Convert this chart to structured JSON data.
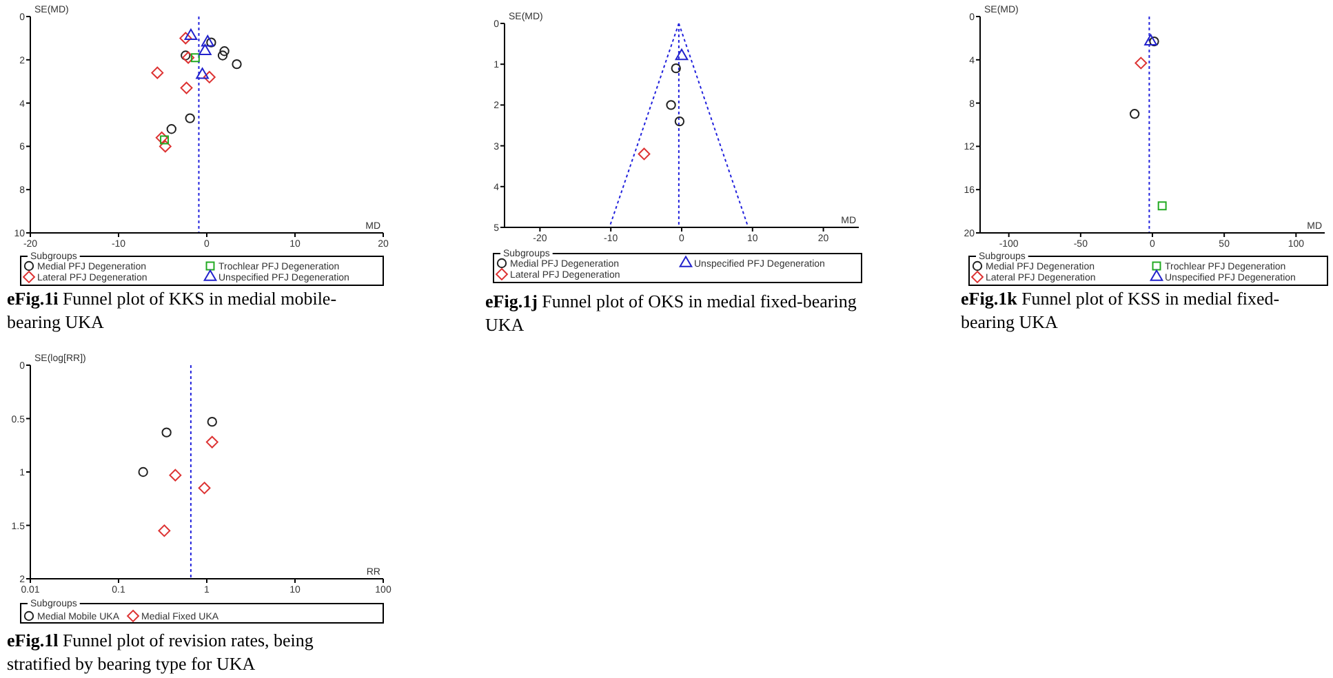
{
  "chart_data": [
    {
      "type": "scatter",
      "title": "eFig.1i Funnel plot of KKS in medial mobile-bearing UKA",
      "xlabel": "MD",
      "ylabel": "SE(MD)",
      "legend_title": "Subgroups",
      "legend": "bottom",
      "xlim": [
        -20,
        20
      ],
      "xticks": [
        -20,
        -10,
        0,
        10,
        20
      ],
      "ylim": [
        10,
        0
      ],
      "yticks": [
        0,
        2,
        4,
        6,
        8,
        10
      ],
      "ref_lines": [
        {
          "axis": "x",
          "value": -0.9,
          "color": "#2222dd",
          "line_style": "dotted"
        }
      ],
      "series": [
        {
          "name": "Medial PFJ Degeneration",
          "color": "#222222",
          "marker": "circle",
          "x": [
            -2.4,
            0.5,
            2.0,
            1.8,
            3.4,
            -1.9,
            -4.0
          ],
          "values": [
            1.8,
            1.2,
            1.6,
            1.8,
            2.2,
            4.7,
            5.2
          ]
        },
        {
          "name": "Lateral PFJ Degeneration",
          "color": "#dd3333",
          "marker": "diamond",
          "x": [
            -2.4,
            -2.1,
            -5.6,
            0.3,
            -2.3,
            -5.1,
            -4.7
          ],
          "values": [
            1.0,
            1.9,
            2.6,
            2.8,
            3.3,
            5.6,
            6.0
          ]
        },
        {
          "name": "Trochlear PFJ Degeneration",
          "color": "#22aa22",
          "marker": "square",
          "x": [
            -1.3,
            -4.8
          ],
          "values": [
            1.9,
            5.7
          ]
        },
        {
          "name": "Unspecified PFJ Degeneration",
          "color": "#2222cc",
          "marker": "triangle",
          "x": [
            -1.8,
            0.1,
            -0.2,
            -0.5
          ],
          "values": [
            0.9,
            1.2,
            1.6,
            2.7
          ]
        }
      ]
    },
    {
      "type": "scatter",
      "title": "eFig.1j Funnel plot of OKS in medial fixed-bearing UKA",
      "xlabel": "MD",
      "ylabel": "SE(MD)",
      "legend_title": "Subgroups",
      "legend": "bottom",
      "xlim": [
        -25,
        25
      ],
      "xticks": [
        -20,
        -10,
        0,
        10,
        20
      ],
      "ylim": [
        5,
        0
      ],
      "yticks": [
        0,
        1,
        2,
        3,
        4,
        5
      ],
      "ref_lines": [
        {
          "axis": "x",
          "value": -0.4,
          "color": "#2222dd",
          "line_style": "dotted"
        }
      ],
      "series": [
        {
          "name": "Medial PFJ Degeneration",
          "color": "#222222",
          "marker": "circle",
          "x": [
            -0.8,
            -1.5,
            -0.3
          ],
          "values": [
            1.1,
            2.0,
            2.4
          ]
        },
        {
          "name": "Lateral PFJ Degeneration",
          "color": "#dd3333",
          "marker": "diamond",
          "x": [
            -5.3
          ],
          "values": [
            3.2
          ]
        },
        {
          "name": "Unspecified PFJ Degeneration",
          "color": "#2222cc",
          "marker": "triangle",
          "x": [
            0.0
          ],
          "values": [
            0.8
          ]
        },
        {
          "type": "line",
          "color": "#2222dd",
          "line_style": "dotted",
          "x": [
            -0.4,
            -10.2
          ],
          "values": [
            0,
            5
          ]
        },
        {
          "type": "line",
          "color": "#2222dd",
          "line_style": "dotted",
          "x": [
            -0.4,
            9.4
          ],
          "values": [
            0,
            5
          ]
        }
      ]
    },
    {
      "type": "scatter",
      "title": "eFig.1k Funnel plot of KSS in medial fixed-bearing UKA",
      "xlabel": "MD",
      "ylabel": "SE(MD)",
      "legend_title": "Subgroups",
      "legend": "bottom",
      "xlim": [
        -120,
        120
      ],
      "xticks": [
        -100,
        -50,
        0,
        50,
        100
      ],
      "ylim": [
        20,
        0
      ],
      "yticks": [
        0,
        4,
        8,
        12,
        16,
        20
      ],
      "ref_lines": [
        {
          "axis": "x",
          "value": -2.2,
          "color": "#2222dd",
          "line_style": "dotted"
        }
      ],
      "series": [
        {
          "name": "Medial PFJ Degeneration",
          "color": "#222222",
          "marker": "circle",
          "x": [
            1.2,
            -12.4
          ],
          "values": [
            2.3,
            9.0
          ]
        },
        {
          "name": "Lateral PFJ Degeneration",
          "color": "#dd3333",
          "marker": "diamond",
          "x": [
            -8.0
          ],
          "values": [
            4.3
          ]
        },
        {
          "name": "Trochlear PFJ Degeneration",
          "color": "#22aa22",
          "marker": "square",
          "x": [
            6.8
          ],
          "values": [
            17.5
          ]
        },
        {
          "name": "Unspecified PFJ Degeneration",
          "color": "#2222cc",
          "marker": "triangle",
          "x": [
            -1.2
          ],
          "values": [
            2.3
          ]
        }
      ]
    },
    {
      "type": "scatter",
      "title": "eFig.1l Funnel plot of revision rates, being stratified by bearing type for UKA",
      "xlabel": "RR",
      "ylabel": "SE(log[RR])",
      "legend_title": "Subgroups",
      "legend": "bottom",
      "log": "x",
      "xlim": [
        0.01,
        100
      ],
      "xticks": [
        0.01,
        0.1,
        1,
        10,
        100
      ],
      "ylim": [
        2,
        0
      ],
      "yticks": [
        0,
        0.5,
        1,
        1.5,
        2
      ],
      "ref_lines": [
        {
          "axis": "x",
          "value": 0.66,
          "color": "#2222dd",
          "line_style": "dotted"
        }
      ],
      "series": [
        {
          "name": "Medial Mobile UKA",
          "color": "#222222",
          "marker": "circle",
          "x": [
            1.15,
            0.35,
            0.19
          ],
          "values": [
            0.53,
            0.63,
            1.0
          ]
        },
        {
          "name": "Medial Fixed UKA",
          "color": "#dd3333",
          "marker": "diamond",
          "x": [
            1.15,
            0.44,
            0.94,
            0.33
          ],
          "values": [
            0.72,
            1.03,
            1.15,
            1.55
          ]
        }
      ]
    }
  ]
}
